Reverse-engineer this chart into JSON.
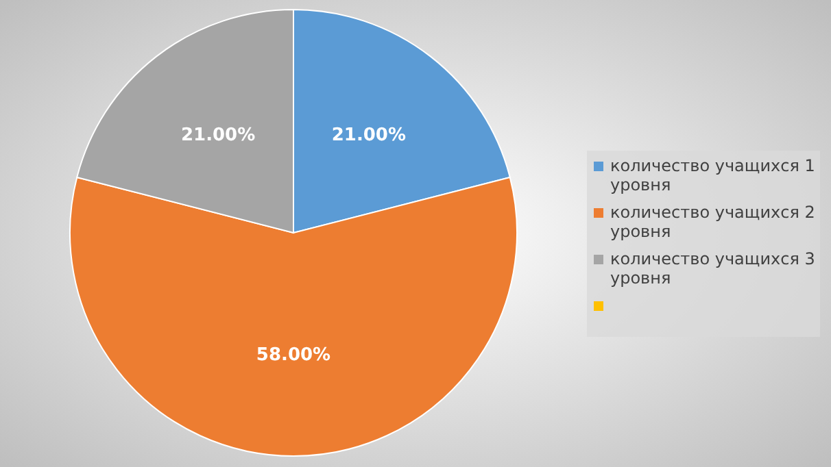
{
  "chart_data": {
    "type": "pie",
    "categories": [
      "количество учащихся 1 уровня",
      "количество учащихся 2 уровня",
      "количество учащихся 3 уровня",
      null
    ],
    "values": [
      21,
      58,
      21,
      0
    ],
    "colors": [
      "#5b9bd5",
      "#ed7d31",
      "#a5a5a5",
      "#ffc000"
    ],
    "value_labels": [
      "21.00%",
      "58.00%",
      "21.00%",
      null
    ],
    "legend": "right"
  }
}
